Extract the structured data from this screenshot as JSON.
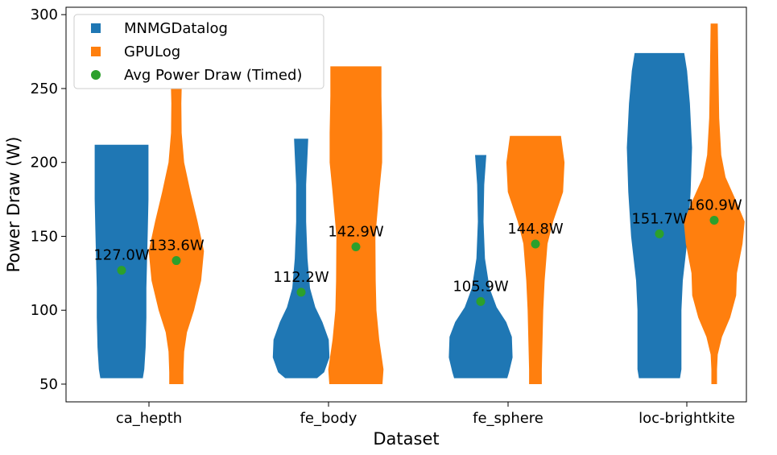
{
  "chart_data": {
    "type": "violin",
    "xlabel": "Dataset",
    "ylabel": "Power Draw (W)",
    "ylim": [
      38,
      305
    ],
    "yticks": [
      50,
      100,
      150,
      200,
      250,
      300
    ],
    "categories": [
      "ca_hepth",
      "fe_body",
      "fe_sphere",
      "loc-brightkite"
    ],
    "series": [
      {
        "name": "MNMGDatalog",
        "color": "#1f77b4",
        "violins": [
          {
            "min": 54,
            "max": 212,
            "profile": [
              [
                54,
                0.6
              ],
              [
                60,
                0.64
              ],
              [
                75,
                0.68
              ],
              [
                95,
                0.7
              ],
              [
                115,
                0.7
              ],
              [
                135,
                0.72
              ],
              [
                155,
                0.74
              ],
              [
                175,
                0.76
              ],
              [
                195,
                0.76
              ],
              [
                212,
                0.76
              ]
            ]
          },
          {
            "min": 54,
            "max": 216,
            "profile": [
              [
                54,
                0.45
              ],
              [
                58,
                0.65
              ],
              [
                68,
                0.8
              ],
              [
                80,
                0.78
              ],
              [
                92,
                0.6
              ],
              [
                102,
                0.4
              ],
              [
                115,
                0.25
              ],
              [
                135,
                0.18
              ],
              [
                160,
                0.14
              ],
              [
                185,
                0.14
              ],
              [
                205,
                0.18
              ],
              [
                216,
                0.2
              ]
            ]
          },
          {
            "min": 54,
            "max": 205,
            "profile": [
              [
                54,
                0.75
              ],
              [
                58,
                0.8
              ],
              [
                68,
                0.9
              ],
              [
                82,
                0.88
              ],
              [
                92,
                0.72
              ],
              [
                102,
                0.45
              ],
              [
                115,
                0.25
              ],
              [
                135,
                0.12
              ],
              [
                160,
                0.08
              ],
              [
                185,
                0.1
              ],
              [
                205,
                0.16
              ]
            ]
          },
          {
            "min": 54,
            "max": 274,
            "profile": [
              [
                54,
                0.58
              ],
              [
                60,
                0.62
              ],
              [
                80,
                0.62
              ],
              [
                100,
                0.62
              ],
              [
                120,
                0.66
              ],
              [
                150,
                0.8
              ],
              [
                180,
                0.88
              ],
              [
                210,
                0.92
              ],
              [
                240,
                0.86
              ],
              [
                262,
                0.78
              ],
              [
                274,
                0.7
              ]
            ]
          }
        ]
      },
      {
        "name": "GPULog",
        "color": "#ff7f0e",
        "violins": [
          {
            "min": 50,
            "max": 258,
            "profile": [
              [
                50,
                0.2
              ],
              [
                58,
                0.2
              ],
              [
                72,
                0.22
              ],
              [
                85,
                0.3
              ],
              [
                100,
                0.5
              ],
              [
                120,
                0.7
              ],
              [
                140,
                0.78
              ],
              [
                160,
                0.6
              ],
              [
                180,
                0.4
              ],
              [
                200,
                0.22
              ],
              [
                220,
                0.15
              ],
              [
                240,
                0.14
              ],
              [
                258,
                0.16
              ]
            ]
          },
          {
            "min": 50,
            "max": 265,
            "profile": [
              [
                50,
                0.75
              ],
              [
                60,
                0.78
              ],
              [
                80,
                0.66
              ],
              [
                100,
                0.58
              ],
              [
                120,
                0.56
              ],
              [
                150,
                0.55
              ],
              [
                180,
                0.66
              ],
              [
                200,
                0.74
              ],
              [
                220,
                0.74
              ],
              [
                245,
                0.72
              ],
              [
                265,
                0.72
              ]
            ]
          },
          {
            "min": 50,
            "max": 218,
            "profile": [
              [
                50,
                0.18
              ],
              [
                60,
                0.18
              ],
              [
                80,
                0.2
              ],
              [
                100,
                0.22
              ],
              [
                120,
                0.26
              ],
              [
                145,
                0.34
              ],
              [
                160,
                0.5
              ],
              [
                180,
                0.78
              ],
              [
                200,
                0.82
              ],
              [
                218,
                0.72
              ]
            ]
          },
          {
            "min": 50,
            "max": 294,
            "profile": [
              [
                50,
                0.08
              ],
              [
                60,
                0.08
              ],
              [
                70,
                0.1
              ],
              [
                82,
                0.22
              ],
              [
                95,
                0.45
              ],
              [
                110,
                0.62
              ],
              [
                125,
                0.64
              ],
              [
                145,
                0.8
              ],
              [
                160,
                0.86
              ],
              [
                175,
                0.6
              ],
              [
                190,
                0.32
              ],
              [
                205,
                0.2
              ],
              [
                230,
                0.14
              ],
              [
                260,
                0.12
              ],
              [
                294,
                0.1
              ]
            ]
          }
        ]
      }
    ],
    "avg_series": {
      "name": "Avg Power Draw (Timed)",
      "color": "#2ca02c",
      "points": [
        {
          "value": 127.0,
          "label": "127.0W"
        },
        {
          "value": 133.6,
          "label": "133.6W"
        },
        {
          "value": 112.2,
          "label": "112.2W"
        },
        {
          "value": 142.9,
          "label": "142.9W"
        },
        {
          "value": 105.9,
          "label": "105.9W"
        },
        {
          "value": 144.8,
          "label": "144.8W"
        },
        {
          "value": 151.7,
          "label": "151.7W"
        },
        {
          "value": 160.9,
          "label": "160.9W"
        }
      ]
    },
    "legend": {
      "placement": "upper-left",
      "entries": [
        "MNMGDatalog",
        "GPULog",
        "Avg Power Draw (Timed)"
      ]
    },
    "grid": false
  }
}
